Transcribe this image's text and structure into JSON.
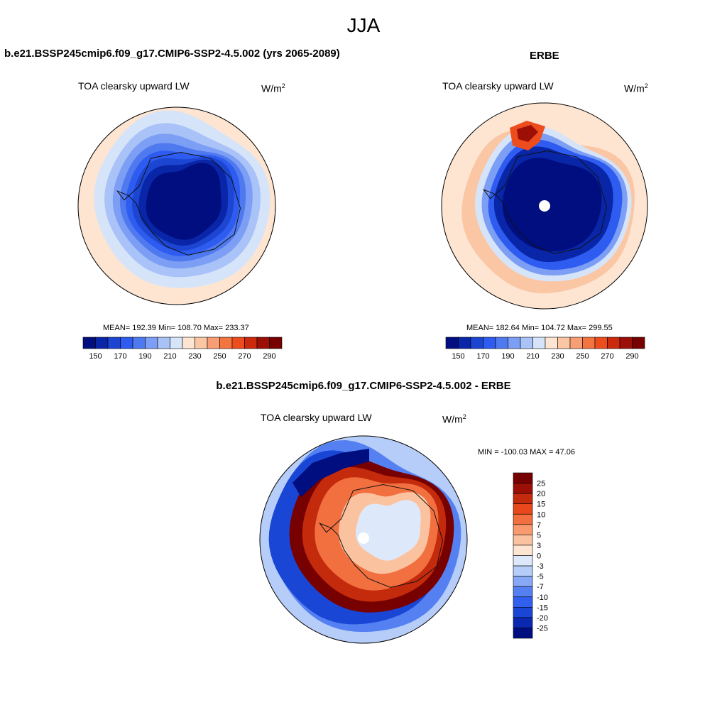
{
  "page": {
    "title": "JJA"
  },
  "panels": {
    "model": {
      "title": "b.e21.BSSP245cmip6.f09_g17.CMIP6-SSP2-4.5.002 (yrs 2065-2089)",
      "variable": "TOA clearsky upward LW",
      "units_base": "W/m",
      "units_exp": "2",
      "stats": "MEAN= 192.39  Min= 108.70  Max= 233.37"
    },
    "obs": {
      "title": "ERBE",
      "variable": "TOA clearsky upward LW",
      "units_base": "W/m",
      "units_exp": "2",
      "stats": "MEAN= 182.64  Min= 104.72  Max= 299.55"
    },
    "diff": {
      "title": "b.e21.BSSP245cmip6.f09_g17.CMIP6-SSP2-4.5.002 - ERBE",
      "variable": "TOA clearsky upward LW",
      "units_base": "W/m",
      "units_exp": "2",
      "minmax": "MIN = -100.03 MAX =  47.06"
    }
  },
  "chart_data": [
    {
      "type": "heatmap",
      "projection": "south-polar-stereographic",
      "title": "b.e21.BSSP245cmip6.f09_g17.CMIP6-SSP2-4.5.002 (yrs 2065-2089)",
      "subtitle": "TOA clearsky upward LW",
      "units": "W/m2",
      "mean": 192.39,
      "min": 108.7,
      "max": 233.37,
      "colorbar_levels": [
        150,
        160,
        170,
        180,
        190,
        200,
        210,
        220,
        230,
        240,
        250,
        260,
        270,
        280,
        290
      ],
      "colorbar_tick_labels": [
        "150",
        "170",
        "190",
        "210",
        "230",
        "250",
        "270",
        "290"
      ],
      "colorbar_colors": [
        "#000e80",
        "#0926a8",
        "#1c46d2",
        "#2e5cf0",
        "#4f79ef",
        "#7c9ef4",
        "#a9c2f7",
        "#d6e4fa",
        "#fde5d2",
        "#fbc6a3",
        "#f89e74",
        "#f4743f",
        "#ed4d1c",
        "#cc2a0d",
        "#9d0f06",
        "#770000"
      ]
    },
    {
      "type": "heatmap",
      "projection": "south-polar-stereographic",
      "title": "ERBE",
      "subtitle": "TOA clearsky upward LW",
      "units": "W/m2",
      "mean": 182.64,
      "min": 104.72,
      "max": 299.55,
      "colorbar_levels": [
        150,
        160,
        170,
        180,
        190,
        200,
        210,
        220,
        230,
        240,
        250,
        260,
        270,
        280,
        290
      ],
      "colorbar_tick_labels": [
        "150",
        "170",
        "190",
        "210",
        "230",
        "250",
        "270",
        "290"
      ],
      "colorbar_colors": [
        "#000e80",
        "#0926a8",
        "#1c46d2",
        "#2e5cf0",
        "#4f79ef",
        "#7c9ef4",
        "#a9c2f7",
        "#d6e4fa",
        "#fde5d2",
        "#fbc6a3",
        "#f89e74",
        "#f4743f",
        "#ed4d1c",
        "#cc2a0d",
        "#9d0f06",
        "#770000"
      ]
    },
    {
      "type": "heatmap",
      "projection": "south-polar-stereographic",
      "title": "b.e21.BSSP245cmip6.f09_g17.CMIP6-SSP2-4.5.002 - ERBE",
      "subtitle": "TOA clearsky upward LW",
      "units": "W/m2",
      "min": -100.03,
      "max": 47.06,
      "colorbar_levels": [
        -25,
        -20,
        -15,
        -10,
        -7,
        -5,
        -3,
        0,
        3,
        5,
        7,
        10,
        15,
        20,
        25
      ],
      "colorbar_tick_labels": [
        "-25",
        "-20",
        "-15",
        "-10",
        "-7",
        "-5",
        "-3",
        "0",
        "3",
        "5",
        "7",
        "10",
        "15",
        "20",
        "25"
      ],
      "colorbar_colors": [
        "#000e80",
        "#0a28b0",
        "#1a46d6",
        "#3160ee",
        "#5580f2",
        "#86a8f5",
        "#b5cdf8",
        "#dde9fb",
        "#fde5d2",
        "#fbc29f",
        "#f89a6e",
        "#f27040",
        "#e8481c",
        "#c42a0c",
        "#9a1006",
        "#770000"
      ]
    }
  ]
}
